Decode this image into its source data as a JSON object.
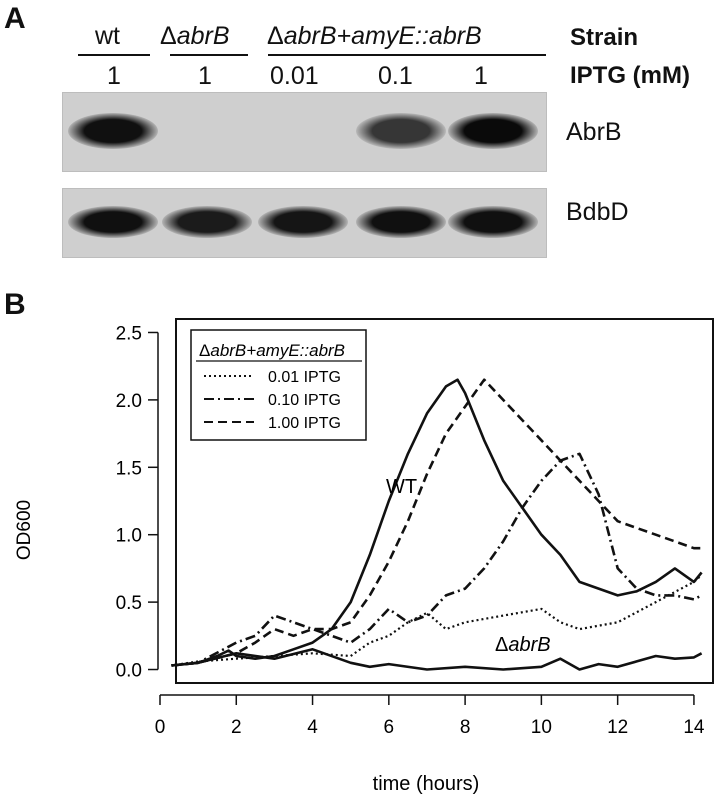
{
  "panel_a": {
    "label": "A",
    "strain_header": "Strain",
    "iptg_header": "IPTG (mM)",
    "strains": [
      {
        "delta": "",
        "name": "wt",
        "suffix": ""
      },
      {
        "delta": "Δ",
        "name": "abrB",
        "suffix": ""
      },
      {
        "delta": "Δ",
        "name": "abrB",
        "suffix": "+amyE::abrB"
      }
    ],
    "iptg_values": [
      "1",
      "1",
      "0.01",
      "0.1",
      "1"
    ],
    "blots": [
      {
        "label": "AbrB",
        "band_intensity": [
          0.95,
          0.0,
          0.0,
          0.6,
          1.0
        ]
      },
      {
        "label": "BdbD",
        "band_intensity": [
          0.95,
          0.85,
          0.9,
          0.95,
          0.95
        ]
      }
    ]
  },
  "panel_b": {
    "label": "B",
    "legend_title_delta": "Δ",
    "legend_title_gene": "abrB",
    "legend_title_rest": "+amyE::abrB",
    "annotation_wt": "WT",
    "annotation_delta": "Δ",
    "annotation_abrb": "abrB"
  },
  "chart_data": {
    "type": "line",
    "xlabel": "time (hours)",
    "ylabel": "OD600",
    "xlim": [
      0,
      14.5
    ],
    "ylim": [
      -0.1,
      2.6
    ],
    "xticks": [
      0,
      2,
      4,
      6,
      8,
      10,
      12,
      14
    ],
    "yticks": [
      0.0,
      0.5,
      1.0,
      1.5,
      2.0,
      2.5
    ],
    "ytick_labels": [
      "0.0",
      "0.5",
      "1.0",
      "1.5",
      "2.0",
      "2.5"
    ],
    "legend_position": "top-left",
    "series": [
      {
        "name": "WT",
        "style": "solid",
        "x": [
          0.3,
          1.0,
          1.5,
          1.8,
          2.0,
          2.5,
          3.0,
          3.5,
          4.0,
          4.5,
          5.0,
          5.5,
          6.0,
          6.5,
          7.0,
          7.5,
          7.8,
          8.0,
          8.5,
          9.0,
          9.5,
          10.0,
          10.5,
          11.0,
          11.5,
          12.0,
          12.5,
          13.0,
          13.5,
          14.0,
          14.2
        ],
        "y": [
          0.03,
          0.05,
          0.1,
          0.14,
          0.1,
          0.08,
          0.1,
          0.15,
          0.2,
          0.3,
          0.5,
          0.85,
          1.25,
          1.6,
          1.9,
          2.1,
          2.15,
          2.05,
          1.7,
          1.4,
          1.2,
          1.0,
          0.85,
          0.65,
          0.6,
          0.55,
          0.58,
          0.65,
          0.75,
          0.65,
          0.72
        ]
      },
      {
        "name": "ΔabrB",
        "style": "solid",
        "x": [
          0.3,
          1.0,
          2.0,
          3.0,
          4.0,
          5.0,
          5.5,
          6.0,
          7.0,
          8.0,
          9.0,
          10.0,
          10.5,
          11.0,
          11.5,
          12.0,
          12.5,
          13.0,
          13.5,
          14.0,
          14.2
        ],
        "y": [
          0.03,
          0.05,
          0.12,
          0.08,
          0.15,
          0.05,
          0.02,
          0.04,
          0.0,
          0.02,
          0.0,
          0.02,
          0.08,
          0.0,
          0.04,
          0.02,
          0.06,
          0.1,
          0.08,
          0.09,
          0.12
        ]
      },
      {
        "name": "0.01 IPTG",
        "style": "dotted",
        "x": [
          0.3,
          1.0,
          2.0,
          3.0,
          4.0,
          5.0,
          5.5,
          6.0,
          6.5,
          7.0,
          7.5,
          8.0,
          9.0,
          10.0,
          10.5,
          11.0,
          12.0,
          13.0,
          14.0,
          14.2
        ],
        "y": [
          0.03,
          0.06,
          0.08,
          0.1,
          0.12,
          0.1,
          0.2,
          0.25,
          0.35,
          0.42,
          0.3,
          0.35,
          0.4,
          0.45,
          0.35,
          0.3,
          0.35,
          0.5,
          0.65,
          0.7
        ]
      },
      {
        "name": "0.10 IPTG",
        "style": "dashdot",
        "x": [
          0.3,
          1.0,
          2.0,
          2.5,
          3.0,
          3.5,
          4.0,
          4.5,
          5.0,
          5.5,
          6.0,
          6.5,
          7.0,
          7.5,
          8.0,
          8.5,
          9.0,
          9.5,
          10.0,
          10.5,
          11.0,
          11.5,
          12.0,
          12.5,
          13.0,
          13.5,
          14.0,
          14.2
        ],
        "y": [
          0.03,
          0.05,
          0.2,
          0.25,
          0.4,
          0.35,
          0.3,
          0.25,
          0.2,
          0.3,
          0.45,
          0.35,
          0.4,
          0.55,
          0.6,
          0.75,
          0.95,
          1.2,
          1.4,
          1.55,
          1.6,
          1.3,
          0.75,
          0.6,
          0.55,
          0.55,
          0.52,
          0.55
        ]
      },
      {
        "name": "1.00 IPTG",
        "style": "dashed",
        "x": [
          0.3,
          1.0,
          2.0,
          2.5,
          3.0,
          3.5,
          4.0,
          4.5,
          5.0,
          5.5,
          6.0,
          6.5,
          7.0,
          7.5,
          8.0,
          8.5,
          9.0,
          9.5,
          10.0,
          10.5,
          11.0,
          11.5,
          12.0,
          12.5,
          13.0,
          13.5,
          14.0,
          14.2
        ],
        "y": [
          0.03,
          0.05,
          0.12,
          0.2,
          0.3,
          0.25,
          0.3,
          0.3,
          0.35,
          0.55,
          0.8,
          1.1,
          1.45,
          1.75,
          1.95,
          2.15,
          2.0,
          1.85,
          1.7,
          1.55,
          1.4,
          1.25,
          1.1,
          1.05,
          1.0,
          0.95,
          0.9,
          0.9
        ]
      }
    ]
  }
}
